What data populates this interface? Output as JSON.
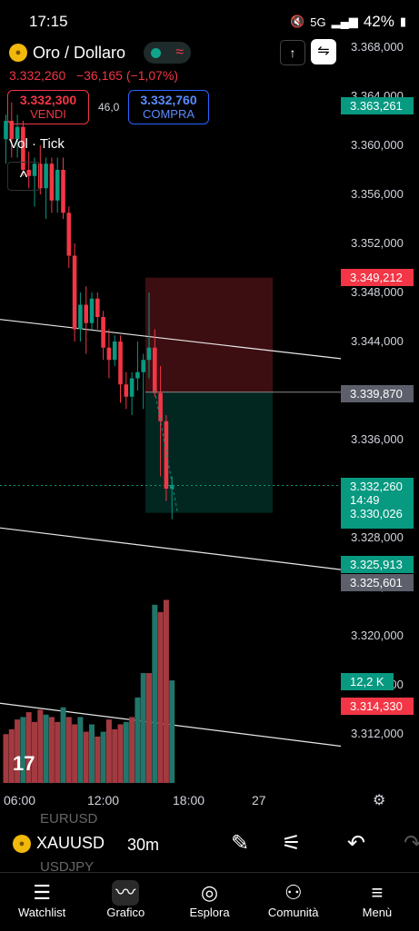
{
  "status_bar": {
    "time": "17:15",
    "network": "5G",
    "battery": "42%"
  },
  "header": {
    "symbol": "Oro / Dollaro",
    "price": "3.332,260",
    "change": "−36,165",
    "change_pct": "(−1,07%)",
    "sell_price": "3.332,300",
    "sell_label": "VENDI",
    "spread": "46,0",
    "buy_price": "3.332,760",
    "buy_label": "COMPRA",
    "volume_label": "Vol · Tick",
    "collapse_glyph": "^"
  },
  "price_axis": {
    "ticks": [
      "3.368,000",
      "3.364,000",
      "3.360,000",
      "3.356,000",
      "3.352,000",
      "3.348,000",
      "3.344,000",
      "3.340,000",
      "3.336,000",
      "3.332,000",
      "3.328,000",
      "3.324,000",
      "3.320,000",
      "3.316,000",
      "3.312,000"
    ],
    "tags": {
      "upper": "3.363,261",
      "stop": "3.349,212",
      "entry": "3.339,870",
      "last": "3.332,260",
      "countdown": "14:49",
      "tp": "3.330,026",
      "low1": "3.325,913",
      "low2": "3.325,601",
      "volume": "12,2 K",
      "vol_low": "3.314,330"
    },
    "tag_colors": {
      "green": "#089981",
      "red": "#f23645",
      "gray": "#5d606b"
    }
  },
  "time_axis": {
    "ticks": [
      "06:00",
      "12:00",
      "18:00",
      "27"
    ]
  },
  "toolbar": {
    "symbol": "XAUUSD",
    "interval": "30m",
    "ghost_above": "EURUSD",
    "ghost_below": "USDJPY"
  },
  "bottom_nav": [
    {
      "label": "Watchlist",
      "icon": "watchlist-icon"
    },
    {
      "label": "Grafico",
      "icon": "chart-icon"
    },
    {
      "label": "Esplora",
      "icon": "compass-icon"
    },
    {
      "label": "Comunità",
      "icon": "community-icon"
    },
    {
      "label": "Menù",
      "icon": "menu-icon"
    }
  ],
  "chart_data": {
    "type": "candlestick",
    "title": "",
    "xlabel": "",
    "ylabel": "",
    "ylim": [
      3310,
      3368
    ],
    "up_color": "#089981",
    "down_color": "#f23645",
    "candles": [
      {
        "o": 3360.5,
        "h": 3362.5,
        "l": 3358.5,
        "c": 3362.0
      },
      {
        "o": 3362.0,
        "h": 3363.5,
        "l": 3359.0,
        "c": 3360.5
      },
      {
        "o": 3360.5,
        "h": 3362.5,
        "l": 3359.0,
        "c": 3361.5
      },
      {
        "o": 3361.5,
        "h": 3362.0,
        "l": 3357.5,
        "c": 3358.0
      },
      {
        "o": 3358.0,
        "h": 3359.5,
        "l": 3356.5,
        "c": 3357.5
      },
      {
        "o": 3357.5,
        "h": 3359.0,
        "l": 3355.0,
        "c": 3358.5
      },
      {
        "o": 3358.5,
        "h": 3360.0,
        "l": 3356.0,
        "c": 3356.5
      },
      {
        "o": 3356.5,
        "h": 3359.0,
        "l": 3354.0,
        "c": 3358.5
      },
      {
        "o": 3358.5,
        "h": 3359.0,
        "l": 3354.5,
        "c": 3355.5
      },
      {
        "o": 3355.5,
        "h": 3359.0,
        "l": 3354.5,
        "c": 3358.0
      },
      {
        "o": 3358.0,
        "h": 3359.0,
        "l": 3354.0,
        "c": 3354.5
      },
      {
        "o": 3354.5,
        "h": 3355.0,
        "l": 3350.0,
        "c": 3351.0
      },
      {
        "o": 3351.0,
        "h": 3352.0,
        "l": 3344.0,
        "c": 3345.0
      },
      {
        "o": 3345.0,
        "h": 3348.0,
        "l": 3344.0,
        "c": 3347.0
      },
      {
        "o": 3347.0,
        "h": 3348.5,
        "l": 3343.0,
        "c": 3345.5
      },
      {
        "o": 3345.5,
        "h": 3348.0,
        "l": 3345.0,
        "c": 3347.5
      },
      {
        "o": 3347.5,
        "h": 3348.0,
        "l": 3345.0,
        "c": 3346.0
      },
      {
        "o": 3346.0,
        "h": 3346.5,
        "l": 3342.5,
        "c": 3343.5
      },
      {
        "o": 3343.5,
        "h": 3345.0,
        "l": 3341.0,
        "c": 3342.5
      },
      {
        "o": 3342.5,
        "h": 3344.5,
        "l": 3342.0,
        "c": 3344.0
      },
      {
        "o": 3344.0,
        "h": 3344.5,
        "l": 3339.0,
        "c": 3340.5
      },
      {
        "o": 3340.5,
        "h": 3341.5,
        "l": 3338.5,
        "c": 3339.5
      },
      {
        "o": 3339.5,
        "h": 3341.5,
        "l": 3338.0,
        "c": 3341.0
      },
      {
        "o": 3341.0,
        "h": 3344.0,
        "l": 3340.0,
        "c": 3341.5
      },
      {
        "o": 3341.5,
        "h": 3343.0,
        "l": 3338.5,
        "c": 3342.5
      },
      {
        "o": 3342.5,
        "h": 3348.0,
        "l": 3341.0,
        "c": 3343.5
      },
      {
        "o": 3343.5,
        "h": 3345.0,
        "l": 3339.5,
        "c": 3339.8
      },
      {
        "o": 3339.8,
        "h": 3342.0,
        "l": 3333.0,
        "c": 3337.5
      },
      {
        "o": 3337.5,
        "h": 3338.0,
        "l": 3331.0,
        "c": 3332.0
      },
      {
        "o": 3332.0,
        "h": 3333.0,
        "l": 3329.5,
        "c": 3332.3
      }
    ],
    "volumes": [
      {
        "v": 4.0,
        "up": false
      },
      {
        "v": 4.4,
        "up": false
      },
      {
        "v": 5.2,
        "up": false
      },
      {
        "v": 5.4,
        "up": true
      },
      {
        "v": 5.8,
        "up": false
      },
      {
        "v": 5.0,
        "up": false
      },
      {
        "v": 6.0,
        "up": false
      },
      {
        "v": 5.6,
        "up": true
      },
      {
        "v": 5.4,
        "up": false
      },
      {
        "v": 5.0,
        "up": false
      },
      {
        "v": 6.2,
        "up": true
      },
      {
        "v": 5.4,
        "up": false
      },
      {
        "v": 4.8,
        "up": false
      },
      {
        "v": 5.4,
        "up": true
      },
      {
        "v": 4.2,
        "up": false
      },
      {
        "v": 4.8,
        "up": true
      },
      {
        "v": 3.8,
        "up": false
      },
      {
        "v": 4.2,
        "up": true
      },
      {
        "v": 5.2,
        "up": false
      },
      {
        "v": 4.4,
        "up": false
      },
      {
        "v": 4.8,
        "up": false
      },
      {
        "v": 5.0,
        "up": true
      },
      {
        "v": 5.4,
        "up": false
      },
      {
        "v": 7.0,
        "up": true
      },
      {
        "v": 9.0,
        "up": true
      },
      {
        "v": 9.0,
        "up": false
      },
      {
        "v": 14.6,
        "up": true
      },
      {
        "v": 14.0,
        "up": false
      },
      {
        "v": 15.0,
        "up": false
      },
      {
        "v": 8.4,
        "up": true
      }
    ],
    "volume_max": 16,
    "trendlines": [
      {
        "x0": 0,
        "y0": 3345.8,
        "x1": 1.0,
        "y1": 3342.6
      },
      {
        "x0": 0,
        "y0": 3328.8,
        "x1": 1.0,
        "y1": 3325.4
      },
      {
        "x0": 0,
        "y0": 3314.5,
        "x1": 1.0,
        "y1": 3311.0
      }
    ],
    "position": {
      "stop": 3349.212,
      "entry": 3339.87,
      "target": 3330.026,
      "start_index": 25,
      "end_index": 43
    },
    "last_price": 3332.26
  }
}
